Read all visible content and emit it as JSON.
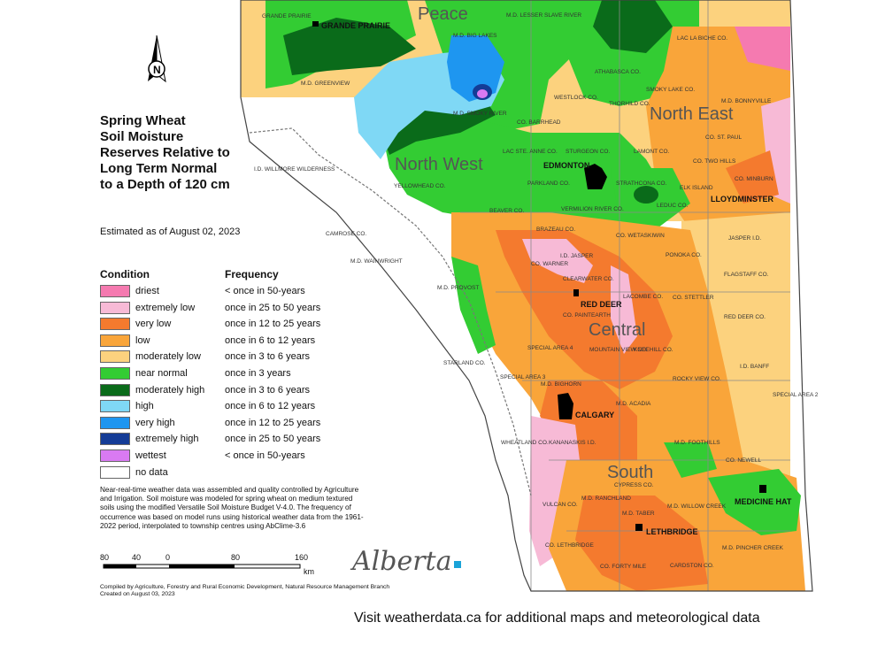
{
  "title_lines": [
    "Spring Wheat",
    "Soil Moisture",
    "Reserves Relative to",
    "Long Term Normal",
    "to a Depth of 120 cm"
  ],
  "estimated": "Estimated as of August 02, 2023",
  "north_label": "N",
  "legend": {
    "condition_header": "Condition",
    "frequency_header": "Frequency",
    "items": [
      {
        "condition": "driest",
        "frequency": "< once in 50-years",
        "color": "#f57ab0"
      },
      {
        "condition": "extremely low",
        "frequency": "once in 25 to 50 years",
        "color": "#f7bad6"
      },
      {
        "condition": "very low",
        "frequency": "once in 12 to 25 years",
        "color": "#f47a2e"
      },
      {
        "condition": "low",
        "frequency": "once in 6 to 12 years",
        "color": "#f9a53a"
      },
      {
        "condition": "moderately low",
        "frequency": "once in 3 to 6 years",
        "color": "#fcd27e"
      },
      {
        "condition": "near normal",
        "frequency": "once in 3 years",
        "color": "#33cc33"
      },
      {
        "condition": "moderately high",
        "frequency": "once in 3 to 6 years",
        "color": "#0a6b1a"
      },
      {
        "condition": "high",
        "frequency": "once in 6 to 12 years",
        "color": "#7fd8f5"
      },
      {
        "condition": "very high",
        "frequency": "once in 12 to 25 years",
        "color": "#1e96f0"
      },
      {
        "condition": "extremely high",
        "frequency": "once in 25 to 50 years",
        "color": "#143c96"
      },
      {
        "condition": "wettest",
        "frequency": "< once in 50-years",
        "color": "#d97af2"
      },
      {
        "condition": "no data",
        "frequency": "",
        "color": "#ffffff"
      }
    ]
  },
  "note": "Near-real-time weather data was assembled and quality controlled by Agriculture and Irrigation.  Soil moisture was modeled for spring wheat on medium textured soils using the modified Versatile Soil Moisture Budget V-4.0.  The frequency of occurrence was based on model runs using historical weather data from the 1961-2022 period, interpolated to township centres using AbClime-3.6",
  "scale": {
    "labels": [
      "80",
      "40",
      "0",
      "80",
      "160"
    ],
    "unit": "km"
  },
  "credit_lines": [
    "Compiled by Agriculture, Forestry and Rural Economic Development, Natural Resource Management Branch",
    "Created on August 03, 2023"
  ],
  "logo_text": "Alberta",
  "visit_text": "Visit weatherdata.ca for additional maps and meteorological data",
  "regions": [
    "Peace",
    "North West",
    "North East",
    "Central",
    "South"
  ],
  "cities": [
    "GRANDE PRAIRIE",
    "EDMONTON",
    "LLOYDMINSTER",
    "RED DEER",
    "CALGARY",
    "MEDICINE HAT",
    "LETHBRIDGE"
  ],
  "places": [
    "GRANDE PRAIRIE",
    "M.D. LESSER SLAVE RIVER",
    "M.D. BIG LAKES",
    "LAC LA BICHE CO.",
    "ATHABASCA CO.",
    "M.D. GREENVIEW",
    "SMOKY LAKE CO.",
    "WESTLOCK CO.",
    "THORHILD CO.",
    "M.D. BONNYVILLE",
    "M.D. SMOKY RIVER",
    "CO. BARRHEAD",
    "CO. ST. PAUL",
    "LAC STE. ANNE CO.",
    "STURGEON CO.",
    "LAMONT CO.",
    "CO. TWO HILLS",
    "I.D. WILLMORE WILDERNESS",
    "YELLOWHEAD CO.",
    "PARKLAND CO.",
    "STRATHCONA CO.",
    "ELK ISLAND",
    "CO. MINBURN",
    "VERMILION RIVER CO.",
    "LEDUC CO.",
    "BEAVER CO.",
    "BRAZEAU CO.",
    "CO. WETASKIWIN",
    "CAMROSE CO.",
    "JASPER I.D.",
    "M.D. WAINWRIGHT",
    "I.D. JASPER",
    "PONOKA CO.",
    "FLAGSTAFF CO.",
    "M.D. PROVOST",
    "CLEARWATER CO.",
    "LACOMBE CO.",
    "CO. STETTLER",
    "CO. PAINTEARTH",
    "RED DEER CO.",
    "SPECIAL AREA 4",
    "MOUNTAIN VIEW CO.",
    "KNEEHILL CO.",
    "STARLAND CO.",
    "I.D. BANFF",
    "SPECIAL AREA 3",
    "M.D. BIGHORN",
    "ROCKY VIEW CO.",
    "SPECIAL AREA 2",
    "M.D. ACADIA",
    "WHEATLAND CO.",
    "KANANASKIS I.D.",
    "M.D. FOOTHILLS",
    "CO. NEWELL",
    "CYPRESS CO.",
    "VULCAN CO.",
    "M.D. RANCHLAND",
    "M.D. WILLOW CREEK",
    "M.D. TABER",
    "CO. LETHBRIDGE",
    "M.D. PINCHER CREEK",
    "CO. FORTY MILE",
    "CARDSTON CO.",
    "CO. WARNER"
  ]
}
